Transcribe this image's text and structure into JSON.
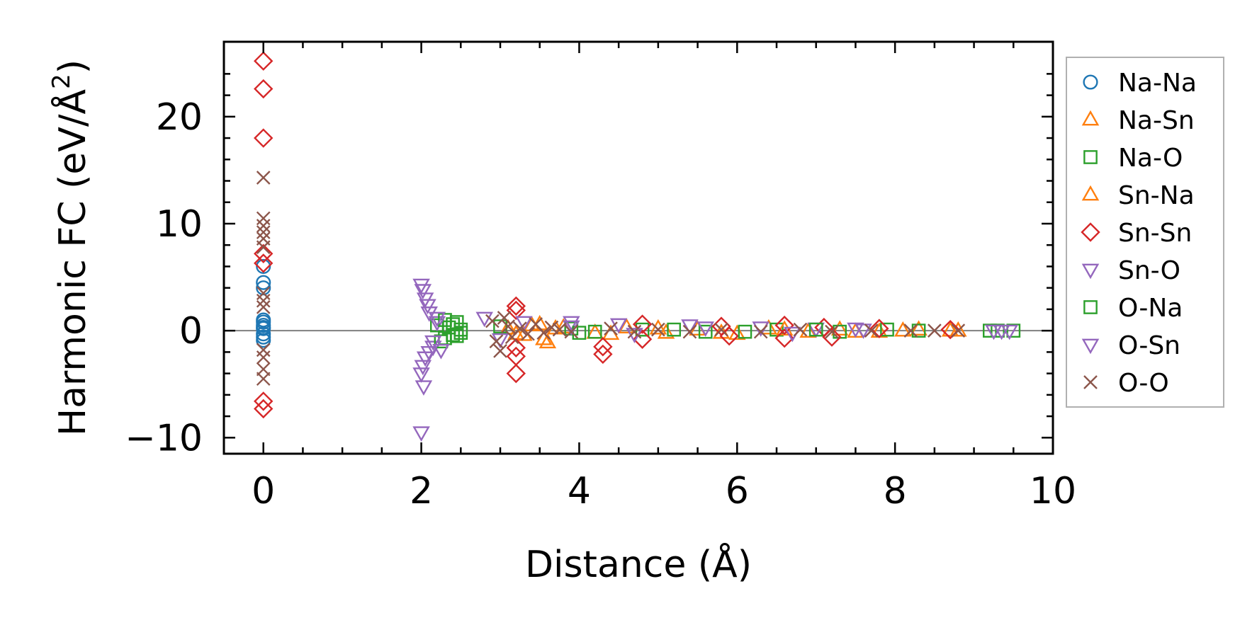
{
  "chart_data": {
    "type": "scatter",
    "title": "",
    "xlabel": "Distance (Å)",
    "ylabel": "Harmonic FC (eV/Å",
    "ylabel_superscript": "2",
    "ylabel_suffix": ")",
    "xlim": [
      -0.5,
      10
    ],
    "ylim": [
      -11.5,
      27
    ],
    "xticks": [
      0,
      2,
      4,
      6,
      8,
      10
    ],
    "xtick_labels": [
      "0",
      "2",
      "4",
      "6",
      "8",
      "10"
    ],
    "yticks": [
      -10,
      0,
      10,
      20
    ],
    "ytick_labels": [
      "−10",
      "0",
      "10",
      "20"
    ],
    "zero_line": true,
    "legend_position": "outside-right",
    "series": [
      {
        "name": "Na-Na",
        "marker": "circle",
        "color": "#1f77b4",
        "points": [
          [
            0,
            0.2
          ],
          [
            0,
            0.5
          ],
          [
            0,
            1.0
          ],
          [
            0,
            -0.3
          ],
          [
            0,
            -0.6
          ],
          [
            0,
            0.8
          ],
          [
            0,
            4.0
          ],
          [
            0,
            4.5
          ],
          [
            0,
            6.0
          ],
          [
            0,
            -0.9
          ],
          [
            0,
            0.3
          ]
        ]
      },
      {
        "name": "Na-Sn",
        "marker": "triangle-up",
        "color": "#ff7f0e",
        "points": [
          [
            3.1,
            0.2
          ],
          [
            3.3,
            -0.4
          ],
          [
            3.5,
            0.6
          ],
          [
            3.6,
            -1.1
          ],
          [
            3.8,
            0.3
          ],
          [
            4.2,
            -0.2
          ],
          [
            4.6,
            0.3
          ],
          [
            5.1,
            -0.2
          ],
          [
            5.5,
            0.1
          ],
          [
            6.0,
            -0.3
          ],
          [
            6.4,
            0.2
          ],
          [
            6.9,
            -0.1
          ],
          [
            7.3,
            0.1
          ],
          [
            7.8,
            -0.1
          ],
          [
            8.3,
            0.1
          ],
          [
            8.7,
            0.0
          ]
        ]
      },
      {
        "name": "Na-O",
        "marker": "square",
        "color": "#2ca02c",
        "points": [
          [
            2.2,
            0.5
          ],
          [
            2.3,
            -0.7
          ],
          [
            2.35,
            0.3
          ],
          [
            2.4,
            -0.4
          ],
          [
            2.45,
            0.8
          ],
          [
            2.5,
            -0.2
          ],
          [
            3.9,
            0.2
          ],
          [
            4.2,
            -0.1
          ],
          [
            4.8,
            0.1
          ],
          [
            5.6,
            -0.1
          ],
          [
            6.5,
            0.1
          ],
          [
            7.3,
            -0.1
          ],
          [
            7.9,
            0.1
          ],
          [
            9.2,
            0.0
          ],
          [
            9.5,
            0.0
          ]
        ]
      },
      {
        "name": "Sn-Na",
        "marker": "triangle-up",
        "color": "#ff7f0e",
        "points": [
          [
            3.2,
            -0.3
          ],
          [
            3.4,
            0.5
          ],
          [
            3.55,
            -0.8
          ],
          [
            3.7,
            0.2
          ],
          [
            4.4,
            -0.3
          ],
          [
            5.0,
            0.2
          ],
          [
            5.8,
            -0.2
          ],
          [
            6.6,
            0.1
          ],
          [
            7.5,
            -0.1
          ],
          [
            8.1,
            0.0
          ],
          [
            8.8,
            0.0
          ]
        ]
      },
      {
        "name": "Sn-Sn",
        "marker": "diamond",
        "color": "#d62728",
        "points": [
          [
            0,
            25.2
          ],
          [
            0,
            22.6
          ],
          [
            0,
            18.0
          ],
          [
            0,
            7.2
          ],
          [
            0,
            6.3
          ],
          [
            0,
            -6.6
          ],
          [
            0,
            -7.3
          ],
          [
            3.2,
            2.3
          ],
          [
            3.2,
            1.9
          ],
          [
            3.2,
            -1.6
          ],
          [
            3.2,
            -2.4
          ],
          [
            3.2,
            -4.0
          ],
          [
            4.3,
            -1.5
          ],
          [
            4.3,
            -2.2
          ],
          [
            4.8,
            0.6
          ],
          [
            4.8,
            -0.8
          ],
          [
            5.8,
            0.4
          ],
          [
            5.9,
            -0.5
          ],
          [
            6.6,
            0.5
          ],
          [
            6.6,
            -0.7
          ],
          [
            7.1,
            0.3
          ],
          [
            7.2,
            -0.6
          ],
          [
            7.8,
            0.2
          ],
          [
            8.7,
            0.1
          ]
        ]
      },
      {
        "name": "Sn-O",
        "marker": "triangle-down",
        "color": "#9467bd",
        "points": [
          [
            2.0,
            4.3
          ],
          [
            2.02,
            3.8
          ],
          [
            2.05,
            3.0
          ],
          [
            2.08,
            2.4
          ],
          [
            2.1,
            1.7
          ],
          [
            2.05,
            -2.5
          ],
          [
            2.02,
            -3.3
          ],
          [
            2.0,
            -4.0
          ],
          [
            2.03,
            -5.2
          ],
          [
            2.0,
            -9.5
          ],
          [
            2.15,
            -1.5
          ],
          [
            2.2,
            0.8
          ],
          [
            2.8,
            1.2
          ],
          [
            3.0,
            -0.8
          ],
          [
            3.9,
            0.8
          ],
          [
            4.5,
            0.6
          ],
          [
            5.4,
            0.5
          ],
          [
            6.3,
            0.3
          ],
          [
            7.0,
            0.2
          ],
          [
            7.6,
            0.1
          ]
        ]
      },
      {
        "name": "O-Na",
        "marker": "square",
        "color": "#2ca02c",
        "points": [
          [
            2.25,
            -1.0
          ],
          [
            2.3,
            1.0
          ],
          [
            2.4,
            0.6
          ],
          [
            2.45,
            -0.5
          ],
          [
            2.5,
            0.1
          ],
          [
            3.0,
            0.4
          ],
          [
            4.0,
            -0.2
          ],
          [
            5.2,
            0.1
          ],
          [
            6.1,
            -0.1
          ],
          [
            7.0,
            0.1
          ],
          [
            8.3,
            0.0
          ],
          [
            9.3,
            0.0
          ]
        ]
      },
      {
        "name": "O-Sn",
        "marker": "triangle-down",
        "color": "#9467bd",
        "points": [
          [
            2.1,
            -2.0
          ],
          [
            2.15,
            -1.0
          ],
          [
            2.2,
            1.2
          ],
          [
            2.25,
            -1.8
          ],
          [
            3.3,
            0.8
          ],
          [
            3.9,
            0.4
          ],
          [
            4.7,
            -0.3
          ],
          [
            5.6,
            0.3
          ],
          [
            6.7,
            -0.2
          ],
          [
            7.5,
            0.2
          ],
          [
            9.25,
            0.0
          ],
          [
            9.35,
            0.0
          ],
          [
            9.45,
            0.0
          ]
        ]
      },
      {
        "name": "O-O",
        "marker": "x",
        "color": "#8c564b",
        "points": [
          [
            0,
            14.3
          ],
          [
            0,
            10.5
          ],
          [
            0,
            9.8
          ],
          [
            0,
            9.2
          ],
          [
            0,
            8.6
          ],
          [
            0,
            7.8
          ],
          [
            0,
            3.5
          ],
          [
            0,
            2.8
          ],
          [
            0,
            2.2
          ],
          [
            0,
            -1.8
          ],
          [
            0,
            -2.5
          ],
          [
            0,
            -3.6
          ],
          [
            0,
            -4.5
          ],
          [
            2.9,
            0.9
          ],
          [
            2.95,
            -1.0
          ],
          [
            3.0,
            -1.9
          ],
          [
            3.05,
            1.2
          ],
          [
            3.1,
            0.4
          ],
          [
            3.15,
            -0.6
          ],
          [
            3.25,
            0.2
          ],
          [
            3.35,
            -0.3
          ],
          [
            3.45,
            0.6
          ],
          [
            3.55,
            -0.2
          ],
          [
            3.65,
            0.3
          ],
          [
            3.75,
            0.1
          ],
          [
            3.9,
            -0.1
          ],
          [
            4.4,
            0.2
          ],
          [
            4.7,
            -0.1
          ],
          [
            5.0,
            0.1
          ],
          [
            5.4,
            -0.1
          ],
          [
            5.8,
            0.1
          ],
          [
            6.3,
            -0.1
          ],
          [
            6.8,
            0.1
          ],
          [
            7.2,
            -0.1
          ],
          [
            7.7,
            0.0
          ],
          [
            8.2,
            0.0
          ],
          [
            8.5,
            0.0
          ],
          [
            8.8,
            0.0
          ]
        ]
      }
    ]
  }
}
